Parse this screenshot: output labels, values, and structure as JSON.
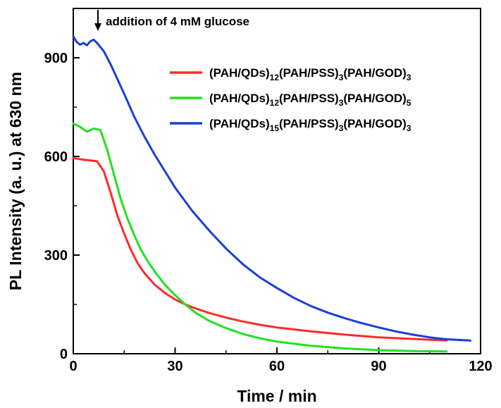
{
  "chart_data": {
    "type": "line",
    "xlabel": "Time / min",
    "ylabel": "PL  Intensity (a. u.) at 630 nm",
    "xlim": [
      0,
      120
    ],
    "ylim": [
      0,
      1050
    ],
    "xticks": [
      0,
      30,
      60,
      90,
      120
    ],
    "yticks": [
      0,
      300,
      600,
      900
    ],
    "grid": false,
    "legend_position": "top-right",
    "annotation": {
      "text": "addition of 4 mM glucose",
      "x": 7
    },
    "series": [
      {
        "name": "(PAH/QDs)12(PAH/PSS)3(PAH/GOD)3",
        "label_parts": [
          "(PAH/QDs)",
          "12",
          "(PAH/PSS)",
          "3",
          "(PAH/GOD)",
          "3"
        ],
        "color": "#ff2a2a",
        "x": [
          0,
          3,
          5,
          7,
          9,
          11,
          13,
          15,
          17,
          19,
          21,
          24,
          27,
          30,
          33,
          36,
          40,
          45,
          50,
          55,
          60,
          70,
          80,
          90,
          100,
          110
        ],
        "y": [
          595,
          590,
          588,
          585,
          555,
          490,
          420,
          365,
          315,
          275,
          245,
          210,
          185,
          165,
          150,
          138,
          124,
          110,
          98,
          88,
          80,
          68,
          58,
          50,
          45,
          40
        ]
      },
      {
        "name": "(PAH/QDs)12(PAH/PSS)3(PAH/GOD)5",
        "label_parts": [
          "(PAH/QDs)",
          "12",
          "(PAH/PSS)",
          "3",
          "(PAH/GOD)",
          "5"
        ],
        "color": "#22e022",
        "x": [
          0,
          2,
          4,
          6,
          8,
          10,
          12,
          14,
          16,
          18,
          20,
          22,
          24,
          27,
          30,
          33,
          36,
          40,
          45,
          50,
          55,
          60,
          70,
          80,
          90,
          100,
          110
        ],
        "y": [
          700,
          690,
          675,
          685,
          680,
          620,
          545,
          470,
          410,
          360,
          315,
          280,
          250,
          210,
          178,
          150,
          125,
          100,
          78,
          60,
          47,
          37,
          24,
          16,
          11,
          8,
          7
        ]
      },
      {
        "name": "(PAH/QDs)15(PAH/PSS)3(PAH/GOD)3",
        "label_parts": [
          "(PAH/QDs)",
          "15",
          "(PAH/PSS)",
          "3",
          "(PAH/GOD)",
          "3"
        ],
        "color": "#1a3fd6",
        "x": [
          0,
          1,
          2,
          3,
          4,
          5,
          6,
          7,
          9,
          11,
          13,
          15,
          18,
          21,
          24,
          27,
          30,
          35,
          40,
          45,
          50,
          55,
          60,
          65,
          70,
          75,
          80,
          85,
          90,
          95,
          100,
          105,
          110,
          117
        ],
        "y": [
          965,
          948,
          940,
          945,
          938,
          950,
          955,
          945,
          920,
          880,
          835,
          790,
          720,
          660,
          605,
          555,
          505,
          435,
          375,
          320,
          272,
          232,
          200,
          170,
          145,
          125,
          108,
          93,
          80,
          68,
          58,
          50,
          44,
          40
        ]
      }
    ]
  }
}
